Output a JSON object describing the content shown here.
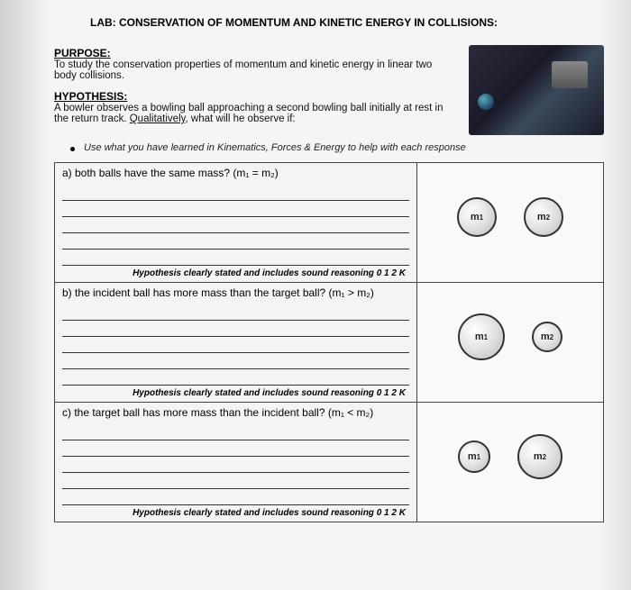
{
  "title": "LAB: CONSERVATION OF MOMENTUM AND KINETIC ENERGY IN COLLISIONS:",
  "purpose": {
    "heading": "PURPOSE:",
    "text": "To study the conservation properties of momentum and kinetic energy in linear two body collisions."
  },
  "hypothesis": {
    "heading": "HYPOTHESIS:",
    "text": "A bowler observes a bowling ball approaching a second bowling ball initially at rest in the return track. Qualitatively, what will he observe if:"
  },
  "bullet": "Use what you have learned in Kinematics, Forces & Energy to help with each response",
  "rubric_text": "Hypothesis clearly stated and includes sound reasoning  0  1  2  K",
  "rows": [
    {
      "label": "a) both balls have the same mass? (m₁ = m₂)",
      "ball1": {
        "label": "m₁",
        "size": 44
      },
      "ball2": {
        "label": "m₂",
        "size": 44
      }
    },
    {
      "label": "b) the incident ball has more mass than the target ball? (m₁ > m₂)",
      "ball1": {
        "label": "m₁",
        "size": 52
      },
      "ball2": {
        "label": "m₂",
        "size": 34
      }
    },
    {
      "label": "c) the target ball has more mass than the incident ball? (m₁ < m₂)",
      "ball1": {
        "label": "m₁",
        "size": 36
      },
      "ball2": {
        "label": "m₂",
        "size": 50
      }
    }
  ],
  "colors": {
    "border": "#444444",
    "text": "#000000",
    "page_bg": "#f5f5f5"
  }
}
